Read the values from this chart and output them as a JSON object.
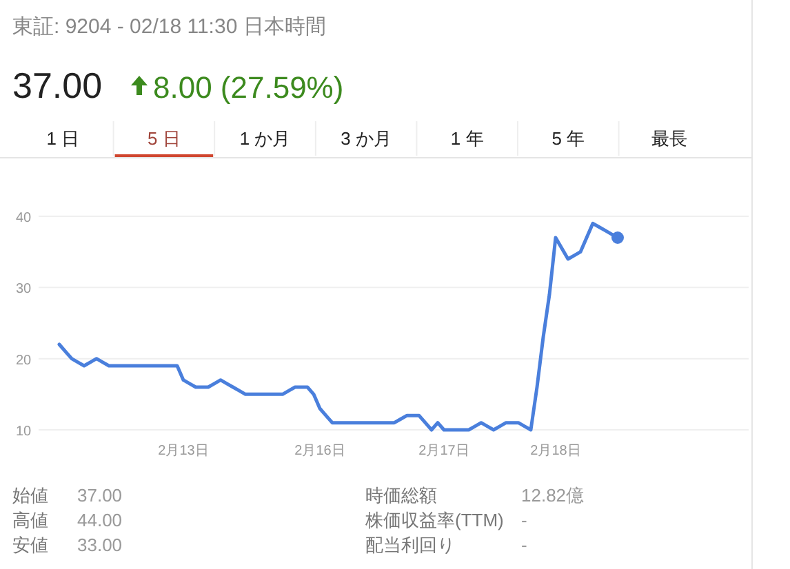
{
  "chart_data": {
    "type": "line",
    "title": "東証: 9204 - 02/18 11:30 日本時間",
    "subtitle": "37.00",
    "annotations": [
      "8.00 (27.59%)",
      "1 日",
      "5 日",
      "1 か月",
      "3 か月",
      "1 年",
      "5 年",
      "最長",
      "始値",
      "37.00",
      "高値",
      "44.00",
      "安値",
      "33.00",
      "時価総額",
      "12.82億",
      "株価収益率(TTM)",
      "-",
      "配当利回り",
      "-"
    ],
    "categories": [
      null,
      null,
      null,
      null,
      null,
      null,
      null,
      null,
      null,
      null,
      null,
      null,
      null,
      null,
      null,
      null,
      null,
      null,
      null,
      null,
      "2月13日",
      null,
      null,
      null,
      null,
      null,
      null,
      null,
      null,
      null,
      null,
      null,
      null,
      null,
      null,
      null,
      null,
      null,
      null,
      null,
      null,
      null,
      "2月16日",
      null,
      null,
      null,
      null,
      null,
      null,
      null,
      null,
      null,
      null,
      null,
      null,
      null,
      null,
      null,
      null,
      null,
      null,
      null,
      "2月17日",
      null,
      null,
      null,
      null,
      null,
      null,
      null,
      null,
      null,
      null,
      null,
      null,
      null,
      null,
      null,
      null,
      null,
      "2月18日",
      null,
      null,
      null,
      null,
      null,
      null,
      null,
      null,
      null,
      null
    ],
    "series": [
      {
        "color": "#4a7fdc",
        "values": [
          22,
          21,
          20,
          19.5,
          19,
          19.5,
          20,
          19.5,
          19,
          19,
          19,
          19,
          19,
          19,
          19,
          19,
          19,
          19,
          19,
          19,
          17,
          16.5,
          16,
          16,
          16,
          16.5,
          17,
          16.5,
          16,
          15.5,
          15,
          15,
          15,
          15,
          15,
          15,
          15,
          15.5,
          16,
          16,
          16,
          15,
          13,
          12,
          11,
          11,
          11,
          11,
          11,
          11,
          11,
          11,
          11,
          11,
          11,
          11.5,
          12,
          12,
          12,
          11,
          10,
          11,
          10,
          10,
          10,
          10,
          10,
          10.5,
          11,
          10.5,
          10,
          10.5,
          11,
          11,
          11,
          10.5,
          10,
          16,
          23,
          29,
          37,
          35.5,
          34,
          34.5,
          35,
          37,
          39,
          38.5,
          38,
          37.5,
          37
        ]
      }
    ],
    "ylim": [
      10,
      40
    ],
    "yticks": [
      10,
      20,
      30,
      40
    ],
    "grid": "y"
  }
}
